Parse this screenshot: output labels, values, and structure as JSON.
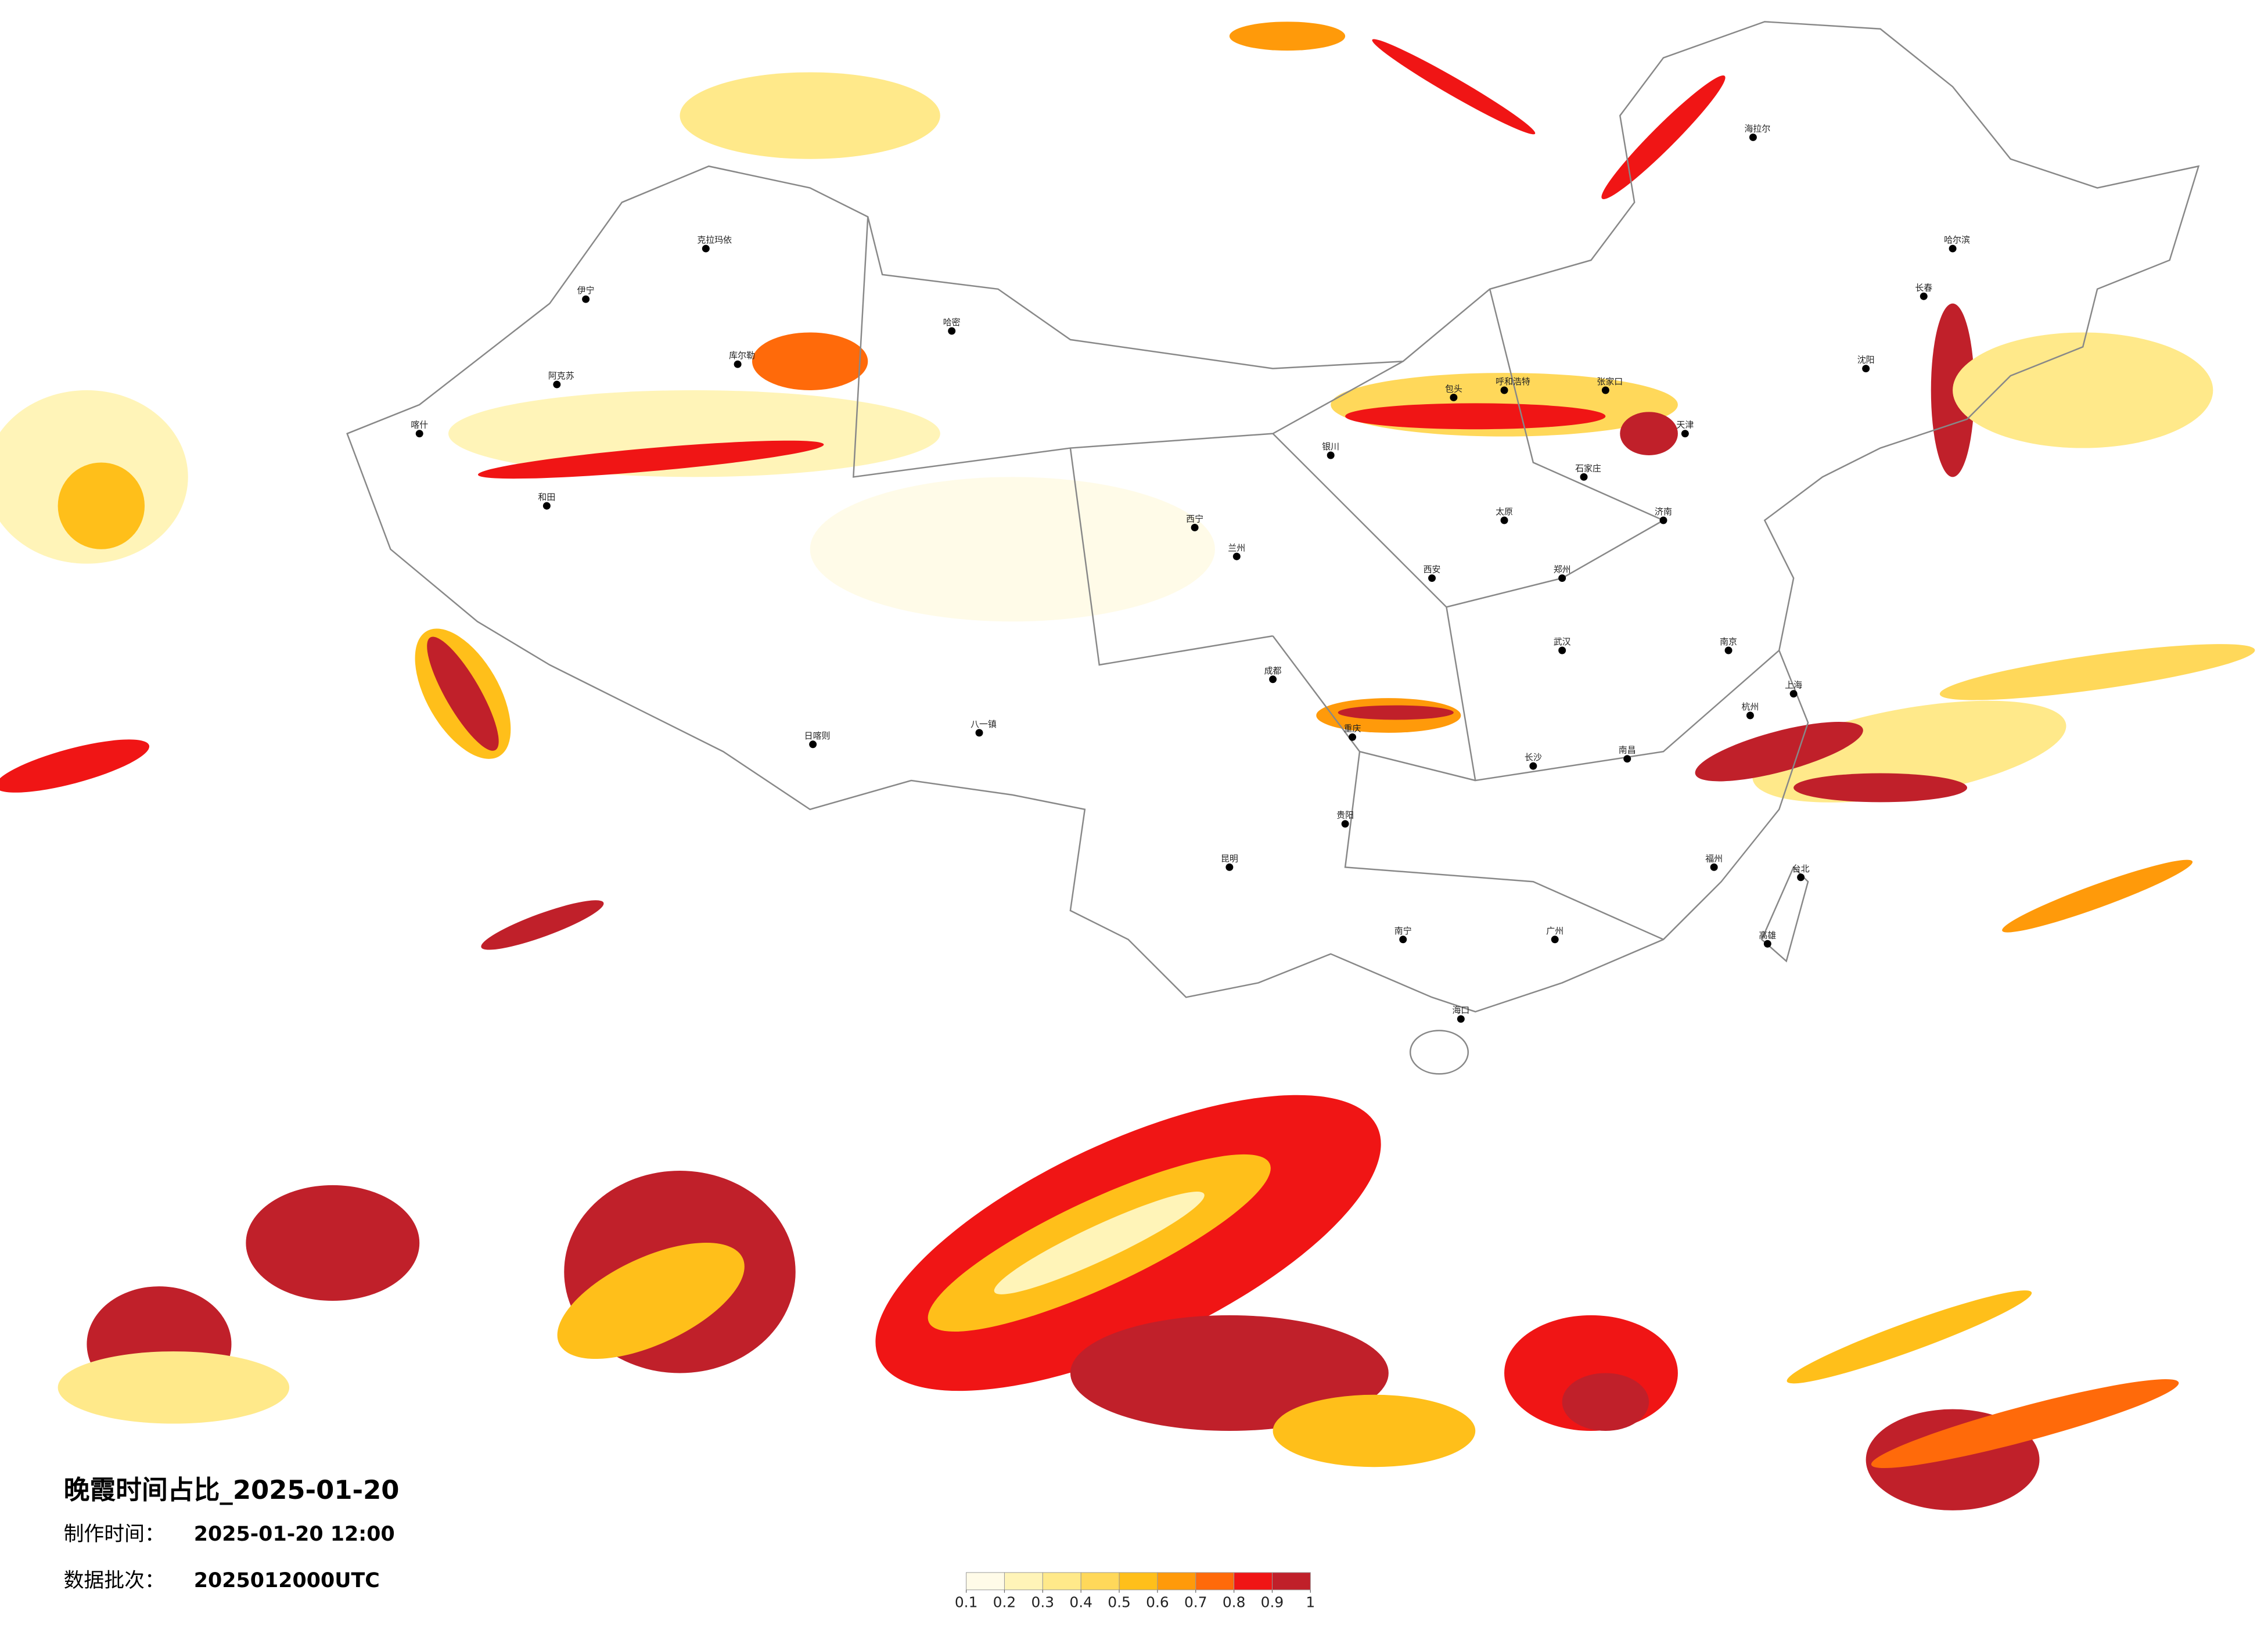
{
  "header": {
    "title": "晚霞时间占比_2025-01-20",
    "made_label": "制作时间：",
    "made_time": "2025-01-20 12:00",
    "batch_label": "数据批次：",
    "batch": "2025012000UTC"
  },
  "colorbar": {
    "ticks": [
      0.1,
      0.2,
      0.3,
      0.4,
      0.5,
      0.6,
      0.7,
      0.8,
      0.9,
      1
    ],
    "colors": [
      "#fffbe8",
      "#fff4b8",
      "#ffe98a",
      "#ffd85a",
      "#ffbf1a",
      "#ff9a0a",
      "#ff6a0a",
      "#f01515",
      "#c0202a"
    ]
  },
  "cities": [
    "克拉玛依",
    "伊宁",
    "阿克苏",
    "和田",
    "喀什",
    "哈密",
    "库尔勒",
    "日喀则",
    "八一镇",
    "西宁",
    "兰州",
    "银川",
    "包头",
    "呼和浩特",
    "张家口",
    "天津",
    "石家庄",
    "太原",
    "济南",
    "郑州",
    "西安",
    "成都",
    "重庆",
    "武汉",
    "南京",
    "上海",
    "杭州",
    "长沙",
    "南昌",
    "福州",
    "广州",
    "南宁",
    "海口",
    "贵阳",
    "昆明",
    "哈尔滨",
    "长春",
    "沈阳",
    "海拉尔",
    "台北",
    "高雄"
  ]
}
